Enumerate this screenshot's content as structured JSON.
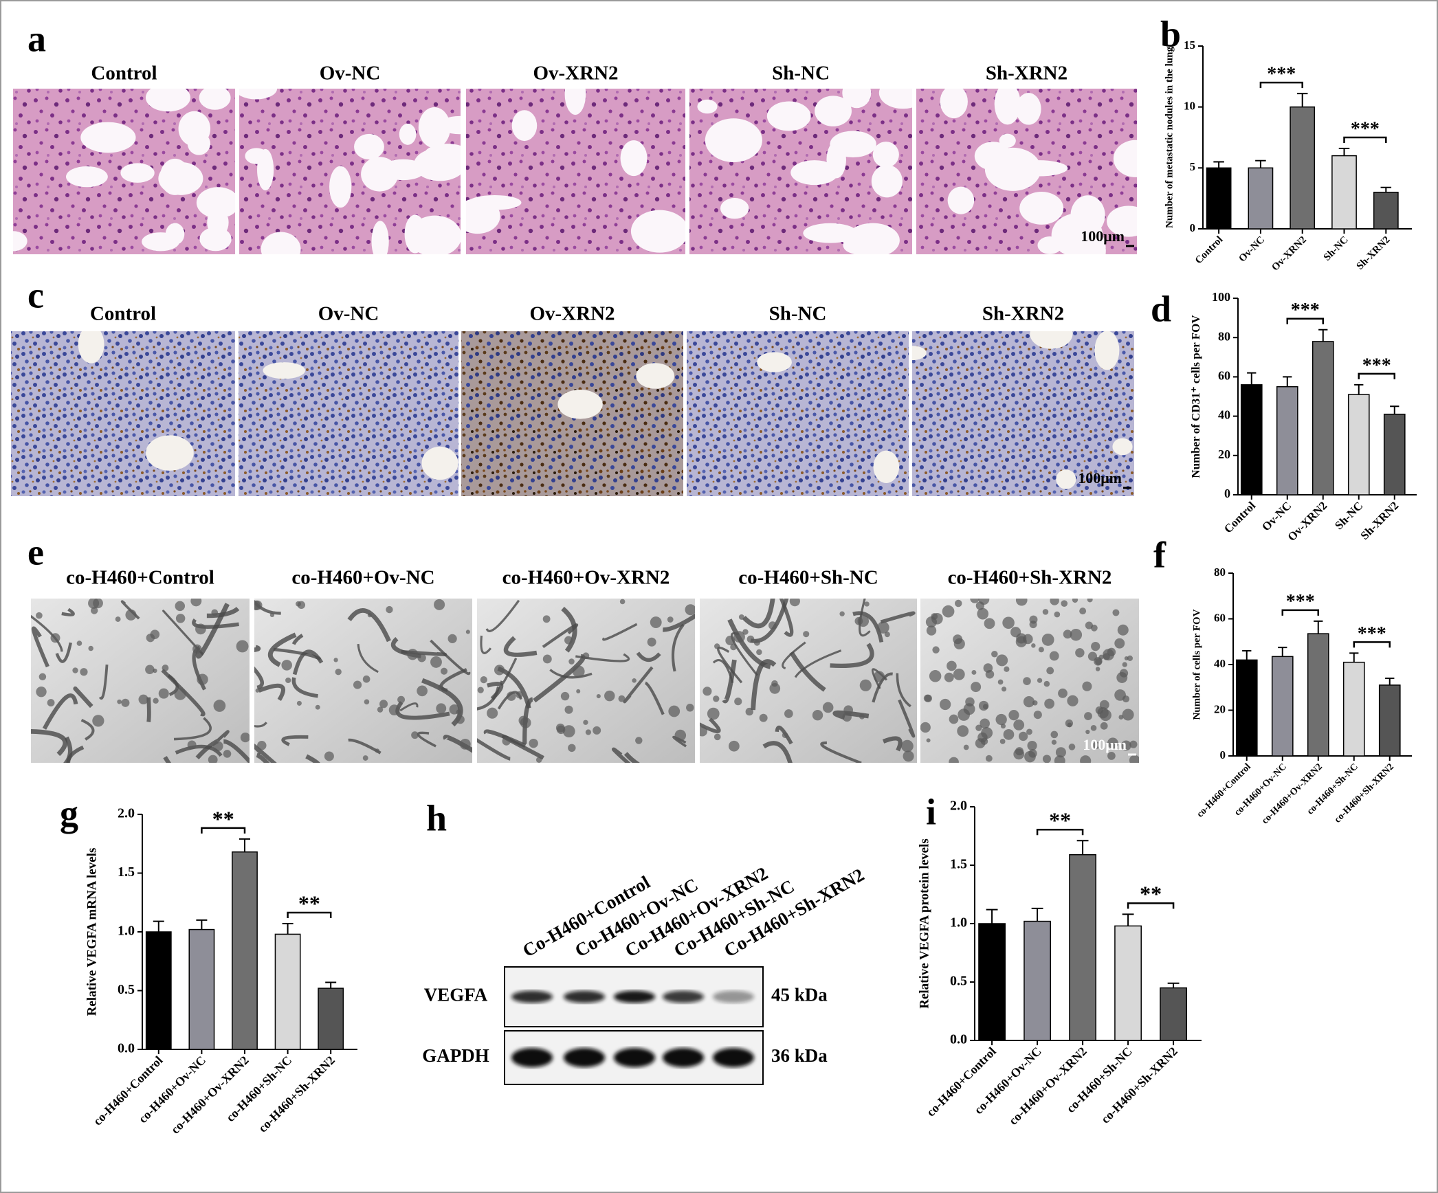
{
  "panels": {
    "a": {
      "letter": "a",
      "labels": [
        "Control",
        "Ov-NC",
        "Ov-XRN2",
        "Sh-NC",
        "Sh-XRN2"
      ],
      "scale_bar": "100μm"
    },
    "c": {
      "letter": "c",
      "labels": [
        "Control",
        "Ov-NC",
        "Ov-XRN2",
        "Sh-NC",
        "Sh-XRN2"
      ],
      "scale_bar": "100μm"
    },
    "e": {
      "letter": "e",
      "labels": [
        "co-H460+Control",
        "co-H460+Ov-NC",
        "co-H460+Ov-XRN2",
        "co-H460+Sh-NC",
        "co-H460+Sh-XRN2"
      ],
      "scale_bar": "100μm"
    }
  },
  "blot": {
    "letter": "h",
    "lanes": [
      "Co-H460+Control",
      "Co-H460+Ov-NC",
      "Co-H460+Ov-XRN2",
      "Co-H460+Sh-NC",
      "Co-H460+Sh-XRN2"
    ],
    "rows": [
      {
        "protein": "VEGFA",
        "size": "45 kDa"
      },
      {
        "protein": "GAPDH",
        "size": "36 kDa"
      }
    ]
  },
  "chart_data": [
    {
      "type": "bar",
      "panel": "b",
      "y_label": "Number of metastatic nodules in the lung",
      "categories": [
        "Control",
        "Ov-NC",
        "Ov-XRN2",
        "Sh-NC",
        "Sh-XRN2"
      ],
      "values": [
        5,
        5,
        10,
        6,
        3
      ],
      "errors": [
        0.5,
        0.6,
        1.1,
        0.6,
        0.4
      ],
      "colors": [
        "#000000",
        "#8e8e98",
        "#6f6f6f",
        "#d8d8d8",
        "#555555"
      ],
      "ylim": [
        0,
        15
      ],
      "yticks": [
        0,
        5,
        10,
        15
      ],
      "annotations": [
        {
          "text": "***",
          "pair": [
            1,
            2
          ]
        },
        {
          "text": "***",
          "pair": [
            3,
            4
          ]
        }
      ]
    },
    {
      "type": "bar",
      "panel": "d",
      "y_label": "Number of CD31⁺ cells per FOV",
      "categories": [
        "Control",
        "Ov-NC",
        "Ov-XRN2",
        "Sh-NC",
        "Sh-XRN2"
      ],
      "values": [
        56,
        55,
        78,
        51,
        41
      ],
      "errors": [
        6,
        5,
        6,
        5,
        4
      ],
      "colors": [
        "#000000",
        "#8e8e98",
        "#6f6f6f",
        "#d8d8d8",
        "#555555"
      ],
      "ylim": [
        0,
        100
      ],
      "yticks": [
        0,
        20,
        40,
        60,
        80,
        100
      ],
      "annotations": [
        {
          "text": "***",
          "pair": [
            1,
            2
          ]
        },
        {
          "text": "***",
          "pair": [
            3,
            4
          ]
        }
      ]
    },
    {
      "type": "bar",
      "panel": "f",
      "y_label": "Number of cells per FOV",
      "categories": [
        "co-H460+Control",
        "co-H460+Ov-NC",
        "co-H460+Ov-XRN2",
        "co-H460+Sh-NC",
        "co-H460+Sh-XRN2"
      ],
      "values": [
        42,
        43.5,
        53.5,
        41,
        31
      ],
      "errors": [
        4,
        4,
        5.5,
        4,
        3
      ],
      "colors": [
        "#000000",
        "#8e8e98",
        "#6f6f6f",
        "#d8d8d8",
        "#555555"
      ],
      "ylim": [
        0,
        80
      ],
      "yticks": [
        0,
        20,
        40,
        60,
        80
      ],
      "annotations": [
        {
          "text": "***",
          "pair": [
            1,
            2
          ]
        },
        {
          "text": "***",
          "pair": [
            3,
            4
          ]
        }
      ]
    },
    {
      "type": "bar",
      "panel": "g",
      "y_label": "Relative VEGFA mRNA levels",
      "categories": [
        "co-H460+Control",
        "co-H460+Ov-NC",
        "co-H460+Ov-XRN2",
        "co-H460+Sh-NC",
        "co-H460+Sh-XRN2"
      ],
      "values": [
        1.0,
        1.02,
        1.68,
        0.98,
        0.52
      ],
      "errors": [
        0.09,
        0.08,
        0.11,
        0.09,
        0.05
      ],
      "colors": [
        "#000000",
        "#8e8e98",
        "#6f6f6f",
        "#d8d8d8",
        "#555555"
      ],
      "ylim": [
        0,
        2
      ],
      "yticks": [
        {
          "value": 0,
          "label": "0.0"
        },
        0.5,
        {
          "value": 1,
          "label": "1.0"
        },
        1.5,
        {
          "value": 2,
          "label": "2.0"
        }
      ],
      "annotations": [
        {
          "text": "**",
          "pair": [
            1,
            2
          ]
        },
        {
          "text": "**",
          "pair": [
            3,
            4
          ]
        }
      ]
    },
    {
      "type": "bar",
      "panel": "i",
      "y_label": "Relative VEGFA protein levels",
      "categories": [
        "co-H460+Control",
        "co-H460+Ov-NC",
        "co-H460+Ov-XRN2",
        "co-H460+Sh-NC",
        "co-H460+Sh-XRN2"
      ],
      "values": [
        1.0,
        1.02,
        1.59,
        0.98,
        0.45
      ],
      "errors": [
        0.12,
        0.11,
        0.12,
        0.1,
        0.04
      ],
      "colors": [
        "#000000",
        "#8e8e98",
        "#6f6f6f",
        "#d8d8d8",
        "#555555"
      ],
      "ylim": [
        0,
        2
      ],
      "yticks": [
        {
          "value": 0,
          "label": "0.0"
        },
        0.5,
        {
          "value": 1,
          "label": "1.0"
        },
        1.5,
        {
          "value": 2,
          "label": "2.0"
        }
      ],
      "annotations": [
        {
          "text": "**",
          "pair": [
            1,
            2
          ]
        },
        {
          "text": "**",
          "pair": [
            3,
            4
          ]
        }
      ]
    }
  ]
}
